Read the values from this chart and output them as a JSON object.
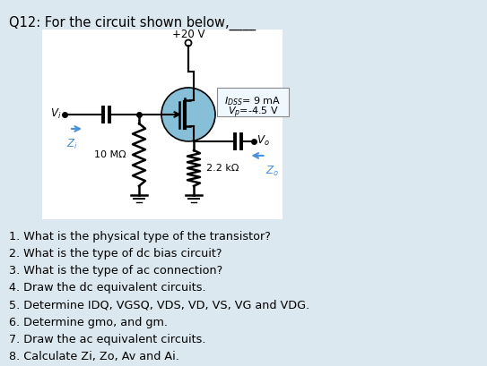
{
  "title": "Q12: For the circuit shown below,____",
  "bg_color": "#deedf5",
  "outer_bg": "#dce8ef",
  "circuit_bg": "#ffffff",
  "supply_label": "+20 V",
  "r1_label": "10 MΩ",
  "r2_label": "2.2 kΩ",
  "questions": [
    "1. What is the physical type of the transistor?",
    "2. What is the type of dc bias circuit?",
    "3. What is the type of ac connection?",
    "4. Draw the dc equivalent circuits.",
    "5. Determine IDQ, VGSQ, VDS, VD, VS, VG and VDG.",
    "6. Determine gmo, and gm.",
    "7. Draw the ac equivalent circuits.",
    "8. Calculate Zi, Zo, Av and Ai."
  ]
}
